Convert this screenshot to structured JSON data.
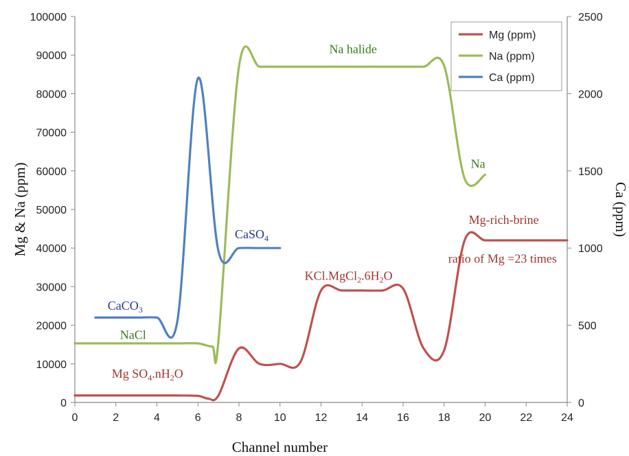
{
  "chart_data": {
    "type": "line",
    "xlabel": "Channel number",
    "ylabel_left": "Mg & Na (ppm)",
    "ylabel_right": "Ca (ppm)",
    "xlim": [
      0,
      24
    ],
    "xticks": [
      0,
      2,
      4,
      6,
      8,
      10,
      12,
      14,
      16,
      18,
      20,
      22,
      24
    ],
    "ylim_left": [
      0,
      100000
    ],
    "yticks_left": [
      0,
      10000,
      20000,
      30000,
      40000,
      50000,
      60000,
      70000,
      80000,
      90000,
      100000
    ],
    "ylim_right": [
      0,
      2500
    ],
    "yticks_right": [
      0,
      500,
      1000,
      1500,
      2000,
      2500
    ],
    "grid": false,
    "legend_position": "top-right",
    "series": [
      {
        "name": "Mg (ppm)",
        "axis": "left",
        "color": "#c0504d",
        "points": [
          [
            0,
            1800
          ],
          [
            1,
            1800
          ],
          [
            2,
            1800
          ],
          [
            3,
            1800
          ],
          [
            4,
            1800
          ],
          [
            5,
            1800
          ],
          [
            6,
            1700
          ],
          [
            6.5,
            1000
          ],
          [
            7,
            1800
          ],
          [
            8,
            14000
          ],
          [
            9,
            10000
          ],
          [
            10,
            10000
          ],
          [
            11,
            10500
          ],
          [
            12,
            29000
          ],
          [
            13,
            29000
          ],
          [
            14,
            29000
          ],
          [
            15,
            29000
          ],
          [
            16,
            29500
          ],
          [
            17,
            14000
          ],
          [
            18,
            13500
          ],
          [
            19,
            42000
          ],
          [
            20,
            42000
          ],
          [
            21,
            42000
          ],
          [
            22,
            42000
          ],
          [
            23,
            42000
          ],
          [
            24,
            42000
          ]
        ]
      },
      {
        "name": "Na (ppm)",
        "axis": "left",
        "color": "#9bbb59",
        "points": [
          [
            0,
            15300
          ],
          [
            1,
            15300
          ],
          [
            2,
            15300
          ],
          [
            3,
            15300
          ],
          [
            4,
            15300
          ],
          [
            5,
            15300
          ],
          [
            6,
            15300
          ],
          [
            6.7,
            14500
          ],
          [
            7,
            16000
          ],
          [
            8,
            87000
          ],
          [
            9,
            87000
          ],
          [
            10,
            87000
          ],
          [
            11,
            87000
          ],
          [
            12,
            87000
          ],
          [
            13,
            87000
          ],
          [
            14,
            87000
          ],
          [
            15,
            87000
          ],
          [
            16,
            87000
          ],
          [
            17,
            87000
          ],
          [
            18,
            87200
          ],
          [
            19,
            58000
          ],
          [
            20,
            59000
          ]
        ]
      },
      {
        "name": "Ca (ppm)",
        "axis": "right",
        "color": "#4f81bd",
        "points": [
          [
            1,
            550
          ],
          [
            2,
            550
          ],
          [
            3,
            550
          ],
          [
            4,
            550
          ],
          [
            5,
            530
          ],
          [
            6,
            2100
          ],
          [
            7,
            980
          ],
          [
            8,
            1000
          ],
          [
            9,
            1000
          ],
          [
            10,
            1000
          ]
        ]
      }
    ],
    "annotations": [
      {
        "id": "caco3",
        "main": "CaCO",
        "sub": "3",
        "tail": "",
        "color": "#1f3a8a",
        "x": 1.6,
        "y": 24000
      },
      {
        "id": "nacl",
        "main": "NaCl",
        "sub": "",
        "tail": "",
        "color": "#3a7a1a",
        "x": 2.2,
        "y": 16500
      },
      {
        "id": "caso4",
        "main": "CaSO",
        "sub": "4",
        "tail": "",
        "color": "#1f3a8a",
        "x": 7.8,
        "y": 42500
      },
      {
        "id": "mgso4",
        "main": "Mg SO",
        "sub": "4",
        "tail": ".nH",
        "sub2": "2",
        "tail2": "O",
        "color": "#a0352d",
        "x": 1.8,
        "y": 6400
      },
      {
        "id": "kcl",
        "main": "KCl.MgCl",
        "sub": "2",
        "tail": ".6H",
        "sub2": "2",
        "tail2": "O",
        "color": "#a0352d",
        "x": 11.2,
        "y": 31800
      },
      {
        "id": "na-halide",
        "main": "Na halide",
        "sub": "",
        "tail": "",
        "color": "#3a7a1a",
        "x": 12.4,
        "y": 90500
      },
      {
        "id": "na",
        "main": "Na",
        "sub": "",
        "tail": "",
        "color": "#3a7a1a",
        "x": 19.3,
        "y": 60800
      },
      {
        "id": "mg-brine",
        "main": "Mg-rich-brine",
        "sub": "",
        "tail": "",
        "color": "#a0352d",
        "x": 19.2,
        "y": 46300
      },
      {
        "id": "mg-ratio",
        "main": "ratio of Mg =23 times",
        "sub": "",
        "tail": "",
        "color": "#a0352d",
        "x": 18.2,
        "y": 36200
      }
    ]
  }
}
